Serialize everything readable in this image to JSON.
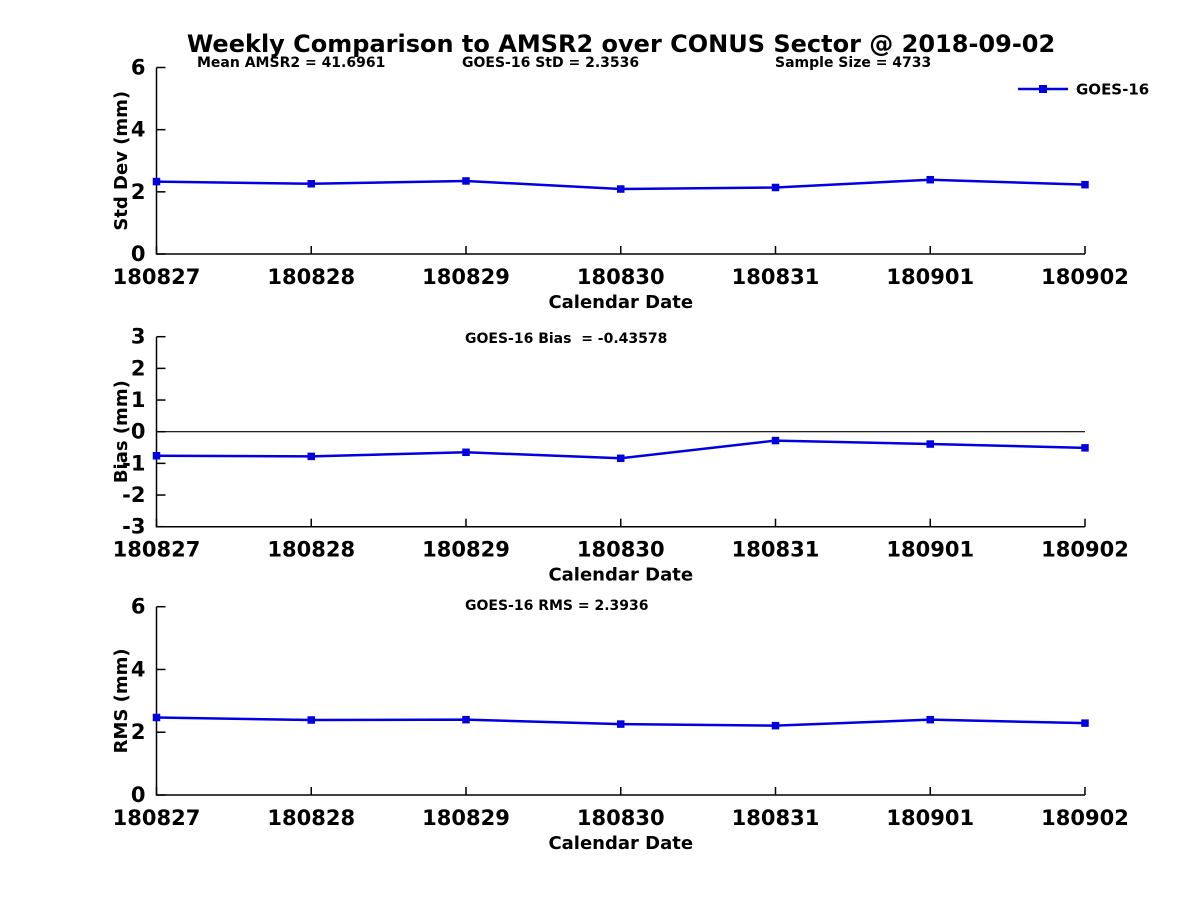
{
  "title": "Weekly Comparison to AMSR2 over CONUS Sector @ 2018-09-02",
  "colors": {
    "series": "#0000e0",
    "axis": "#000000",
    "zero_line": "#000000",
    "background": "#ffffff",
    "text": "#000000"
  },
  "legend": {
    "label": "GOES-16",
    "position": "top-right"
  },
  "x_axis_label": "Calendar Date",
  "categories": [
    "180827",
    "180828",
    "180829",
    "180830",
    "180831",
    "180901",
    "180902"
  ],
  "chart_data": [
    {
      "id": "std-dev",
      "type": "line",
      "title": "",
      "annotations": [
        "Mean AMSR2 = 41.6961",
        "GOES-16 StD = 2.3536",
        "Sample Size = 4733"
      ],
      "categories": [
        "180827",
        "180828",
        "180829",
        "180830",
        "180831",
        "180901",
        "180902"
      ],
      "series": [
        {
          "name": "GOES-16",
          "values": [
            2.33,
            2.26,
            2.35,
            2.09,
            2.14,
            2.39,
            2.23
          ]
        }
      ],
      "xlabel": "Calendar Date",
      "ylabel": "Std Dev (mm)",
      "ylim": [
        0,
        6
      ],
      "yticks": [
        0,
        2,
        4,
        6
      ],
      "grid": false,
      "zero_line": false,
      "show_legend": true
    },
    {
      "id": "bias",
      "type": "line",
      "title": "",
      "annotations": [
        "GOES-16 Bias  = -0.43578"
      ],
      "categories": [
        "180827",
        "180828",
        "180829",
        "180830",
        "180831",
        "180901",
        "180902"
      ],
      "series": [
        {
          "name": "GOES-16",
          "values": [
            -0.76,
            -0.78,
            -0.65,
            -0.84,
            -0.28,
            -0.39,
            -0.51
          ]
        }
      ],
      "xlabel": "Calendar Date",
      "ylabel": "Bias (mm)",
      "ylim": [
        -3,
        3
      ],
      "yticks": [
        -3,
        -2,
        -1,
        0,
        1,
        2,
        3
      ],
      "grid": false,
      "zero_line": true,
      "show_legend": false
    },
    {
      "id": "rms",
      "type": "line",
      "title": "",
      "annotations": [
        "GOES-16 RMS = 2.3936"
      ],
      "categories": [
        "180827",
        "180828",
        "180829",
        "180830",
        "180831",
        "180901",
        "180902"
      ],
      "series": [
        {
          "name": "GOES-16",
          "values": [
            2.47,
            2.39,
            2.4,
            2.26,
            2.21,
            2.4,
            2.29
          ]
        }
      ],
      "xlabel": "Calendar Date",
      "ylabel": "RMS (mm)",
      "ylim": [
        0,
        6
      ],
      "yticks": [
        0,
        2,
        4,
        6
      ],
      "grid": false,
      "zero_line": false,
      "show_legend": false
    }
  ]
}
